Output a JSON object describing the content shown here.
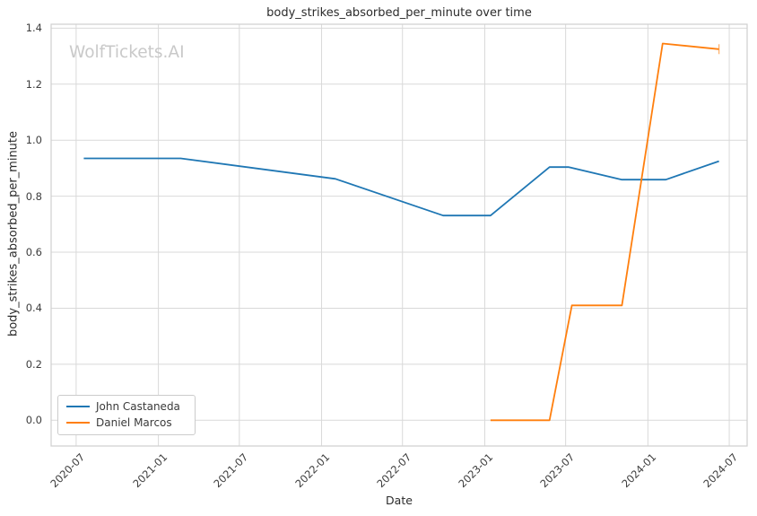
{
  "watermark": "WolfTickets.AI",
  "chart_data": {
    "type": "line",
    "title": "body_strikes_absorbed_per_minute over time",
    "xlabel": "Date",
    "ylabel": "body_strikes_absorbed_per_minute",
    "grid": true,
    "legend_position": "lower left",
    "grid_color": "#d9d9d9",
    "spine_color": "#cfcfcf",
    "xlim": [
      "2020-05-06",
      "2024-08-10"
    ],
    "ylim": [
      -0.092,
      1.414
    ],
    "x_ticks": [
      "2020-07",
      "2021-01",
      "2021-07",
      "2022-01",
      "2022-07",
      "2023-01",
      "2023-07",
      "2024-01",
      "2024-07"
    ],
    "y_ticks": [
      0.0,
      0.2,
      0.4,
      0.6,
      0.8,
      1.0,
      1.2,
      1.4
    ],
    "y_tick_labels": [
      "0.0",
      "0.2",
      "0.4",
      "0.6",
      "0.8",
      "1.0",
      "1.2",
      "1.4"
    ],
    "series": [
      {
        "name": "John Castaneda",
        "color": "#1f77b4",
        "end_cap": false,
        "points": [
          [
            "2020-07-18",
            0.935
          ],
          [
            "2021-02-20",
            0.935
          ],
          [
            "2022-02-01",
            0.862
          ],
          [
            "2022-09-30",
            0.731
          ],
          [
            "2023-01-14",
            0.731
          ],
          [
            "2023-05-26",
            0.904
          ],
          [
            "2023-07-08",
            0.904
          ],
          [
            "2023-11-04",
            0.859
          ],
          [
            "2024-02-10",
            0.859
          ],
          [
            "2024-06-08",
            0.925
          ]
        ]
      },
      {
        "name": "Daniel Marcos",
        "color": "#ff7f0e",
        "end_cap": true,
        "points": [
          [
            "2023-01-14",
            0.0
          ],
          [
            "2023-05-26",
            0.0
          ],
          [
            "2023-07-15",
            0.41
          ],
          [
            "2023-11-04",
            0.41
          ],
          [
            "2024-02-03",
            1.345
          ],
          [
            "2024-06-08",
            1.325
          ]
        ]
      }
    ]
  }
}
